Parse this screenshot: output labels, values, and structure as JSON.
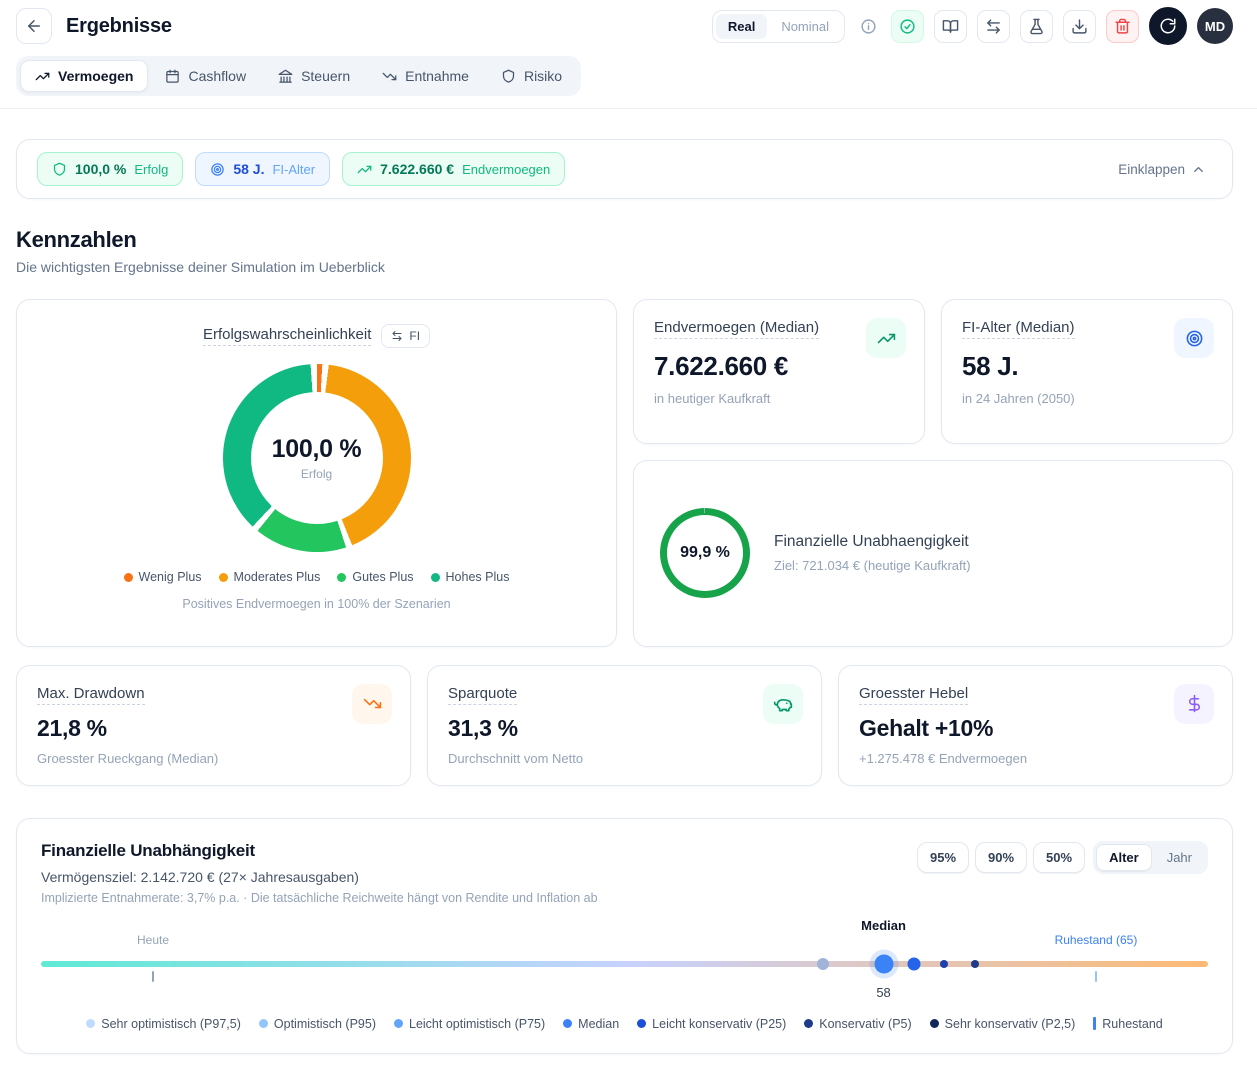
{
  "header": {
    "title": "Ergebnisse",
    "mode_toggle": {
      "options": [
        "Real",
        "Nominal"
      ],
      "selected": "Real"
    },
    "actions": [
      {
        "name": "info-button",
        "icon": "info",
        "variant": "ghost"
      },
      {
        "name": "status-button",
        "icon": "check-circle",
        "variant": "success"
      },
      {
        "name": "docs-button",
        "icon": "book",
        "variant": "default"
      },
      {
        "name": "compare-button",
        "icon": "swap",
        "variant": "default"
      },
      {
        "name": "lab-button",
        "icon": "flask",
        "variant": "default"
      },
      {
        "name": "download-button",
        "icon": "download",
        "variant": "default"
      },
      {
        "name": "delete-button",
        "icon": "trash",
        "variant": "danger"
      },
      {
        "name": "rerun-button",
        "icon": "refresh",
        "variant": "primary"
      }
    ],
    "avatar_initials": "MD"
  },
  "tabs": [
    {
      "label": "Vermoegen",
      "icon": "trend-up",
      "active": true
    },
    {
      "label": "Cashflow",
      "icon": "calendar",
      "active": false
    },
    {
      "label": "Steuern",
      "icon": "landmark",
      "active": false
    },
    {
      "label": "Entnahme",
      "icon": "trend-down",
      "active": false
    },
    {
      "label": "Risiko",
      "icon": "shield",
      "active": false
    }
  ],
  "summary_bar": {
    "chips": [
      {
        "icon": "shield",
        "value": "100,0 %",
        "label": "Erfolg",
        "theme": "green"
      },
      {
        "icon": "target",
        "value": "58 J.",
        "label": "FI-Alter",
        "theme": "blue"
      },
      {
        "icon": "trend-up",
        "value": "7.622.660 €",
        "label": "Endvermoegen",
        "theme": "green"
      }
    ],
    "collapse_label": "Einklappen"
  },
  "kennzahlen": {
    "title": "Kennzahlen",
    "subtitle": "Die wichtigsten Ergebnisse deiner Simulation im Ueberblick"
  },
  "cards": {
    "erfolg": {
      "title": "Erfolgswahrscheinlichkeit",
      "badge_label": "FI",
      "caption": "Positives Endvermoegen in 100% der Szenarien"
    },
    "endvermoegen": {
      "title": "Endvermoegen (Median)",
      "value": "7.622.660 €",
      "subtitle": "in heutiger Kaufkraft"
    },
    "fi_alter": {
      "title": "FI-Alter (Median)",
      "value": "58 J.",
      "subtitle": "in 24 Jahren (2050)"
    },
    "fi_progress": {
      "percent_label": "99,9 %",
      "percent": 99.9,
      "ring_color": "#16a34a",
      "title": "Finanzielle Unabhaengigkeit",
      "subtitle": "Ziel: 721.034 € (heutige Kaufkraft)"
    },
    "drawdown": {
      "title": "Max. Drawdown",
      "value": "21,8 %",
      "subtitle": "Groesster Rueckgang (Median)"
    },
    "sparquote": {
      "title": "Sparquote",
      "value": "31,3 %",
      "subtitle": "Durchschnitt vom Netto"
    },
    "hebel": {
      "title": "Groesster Hebel",
      "value": "Gehalt +10%",
      "subtitle": "+1.275.478 € Endvermoegen"
    }
  },
  "fi_section": {
    "title": "Finanzielle Unabhängigkeit",
    "subtitle": "Vermögensziel: 2.142.720 € (27× Jahresausgaben)",
    "note": "Implizierte Entnahmerate: 3,7% p.a. · Die tatsächliche Reichweite hängt von Rendite und Inflation ab",
    "percentile_buttons": [
      "95%",
      "90%",
      "50%"
    ],
    "view_toggle": {
      "options": [
        "Alter",
        "Jahr"
      ],
      "selected": "Alter"
    }
  },
  "chart_data": [
    {
      "type": "pie",
      "title": "Erfolgswahrscheinlichkeit",
      "center_value": "100,0 %",
      "center_label": "Erfolg",
      "segments": [
        {
          "label": "Wenig Plus",
          "color": "#f97316",
          "value": 2
        },
        {
          "label": "Moderates Plus",
          "color": "#f59e0b",
          "value": 43
        },
        {
          "label": "Gutes Plus",
          "color": "#22c55e",
          "value": 17
        },
        {
          "label": "Hohes Plus",
          "color": "#10b981",
          "value": 38
        }
      ],
      "caption": "Positives Endvermoegen in 100% der Szenarien"
    },
    {
      "type": "timeline",
      "title": "Finanzielle Unabhängigkeit",
      "gradient": [
        "#5eead4",
        "#c7d2fe",
        "#fdba74"
      ],
      "ticks": [
        {
          "label": "Heute",
          "pos": 9.6,
          "color": "#94a3b8",
          "label_color": "#94a3b8"
        },
        {
          "label": "Ruhestand (65)",
          "pos": 90.4,
          "color": "#93c5fd",
          "label_color": "#3b82f6"
        }
      ],
      "markers": [
        {
          "name": "Optimistisch (P95)",
          "pos": 67.0,
          "color": "#9fb4d8",
          "size": 12
        },
        {
          "name": "Median",
          "pos": 72.2,
          "color": "#3b82f6",
          "size": 19,
          "halo": true,
          "label_top": "Median",
          "label_bottom": "58"
        },
        {
          "name": "Leicht konservativ (P25)",
          "pos": 74.8,
          "color": "#2563eb",
          "size": 13
        },
        {
          "name": "Konservativ (P5)",
          "pos": 77.4,
          "color": "#1e40af",
          "size": 8
        },
        {
          "name": "Sehr konservativ (P2,5)",
          "pos": 80.0,
          "color": "#1e3a8a",
          "size": 8
        }
      ],
      "median_age": "58",
      "legend": [
        {
          "label": "Sehr optimistisch (P97,5)",
          "color": "#bfdbfe",
          "type": "dot"
        },
        {
          "label": "Optimistisch (P95)",
          "color": "#93c5fd",
          "type": "dot"
        },
        {
          "label": "Leicht optimistisch (P75)",
          "color": "#60a5fa",
          "type": "dot"
        },
        {
          "label": "Median",
          "color": "#3b82f6",
          "type": "dot"
        },
        {
          "label": "Leicht konservativ (P25)",
          "color": "#1d4ed8",
          "type": "dot"
        },
        {
          "label": "Konservativ (P5)",
          "color": "#1e3a8a",
          "type": "dot"
        },
        {
          "label": "Sehr konservativ (P2,5)",
          "color": "#13265c",
          "type": "dot"
        },
        {
          "label": "Ruhestand",
          "color": "#3b82f6",
          "type": "bar"
        }
      ]
    }
  ]
}
